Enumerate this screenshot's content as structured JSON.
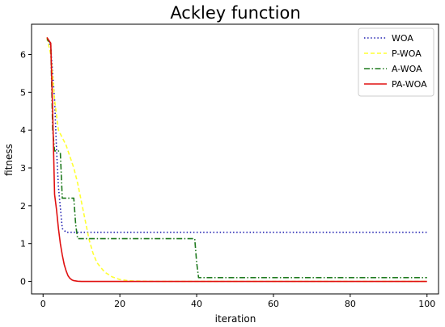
{
  "chart_data": {
    "type": "line",
    "title": "Ackley function",
    "xlabel": "iteration",
    "ylabel": "fitness",
    "xlim": [
      -3,
      103
    ],
    "ylim": [
      -0.33,
      6.8
    ],
    "xticks": [
      0,
      20,
      40,
      60,
      80,
      100
    ],
    "yticks": [
      0,
      1,
      2,
      3,
      4,
      5,
      6
    ],
    "grid": false,
    "legend": "top-right",
    "series": [
      {
        "name": "WOA",
        "color": "#1f1fb0",
        "dash": "dotted",
        "x": [
          1,
          2,
          3,
          3.5,
          4,
          5,
          6,
          8,
          10,
          20,
          40,
          60,
          80,
          100
        ],
        "y": [
          6.45,
          6.2,
          4.8,
          3.5,
          2.5,
          1.4,
          1.3,
          1.3,
          1.3,
          1.3,
          1.3,
          1.3,
          1.3,
          1.3
        ]
      },
      {
        "name": "P-WOA",
        "color": "#ffff33",
        "dash": "dashed",
        "x": [
          1,
          2,
          3,
          4,
          5,
          6,
          7,
          8,
          9,
          10,
          11,
          12,
          13,
          14,
          16,
          18,
          20,
          22,
          24,
          26,
          30,
          40,
          60,
          80,
          100
        ],
        "y": [
          6.45,
          6.0,
          4.8,
          4.0,
          3.8,
          3.6,
          3.3,
          3.0,
          2.6,
          2.1,
          1.6,
          1.1,
          0.75,
          0.5,
          0.25,
          0.12,
          0.05,
          0.02,
          0.01,
          0.005,
          0,
          0,
          0,
          0,
          0
        ]
      },
      {
        "name": "A-WOA",
        "color": "#1f7a1f",
        "dash": "dashdot",
        "x": [
          1,
          2,
          2.5,
          3,
          4,
          4.5,
          5,
          6,
          7,
          8,
          8.5,
          9,
          15,
          20,
          30,
          39.5,
          40,
          40.5,
          60,
          80,
          100
        ],
        "y": [
          6.4,
          6.3,
          4.0,
          3.45,
          3.45,
          3.4,
          2.2,
          2.2,
          2.2,
          2.2,
          1.5,
          1.13,
          1.13,
          1.13,
          1.13,
          1.13,
          0.5,
          0.1,
          0.1,
          0.1,
          0.1
        ]
      },
      {
        "name": "PA-WOA",
        "color": "#e01010",
        "dash": "solid",
        "x": [
          1,
          2,
          2.5,
          3,
          3.5,
          4,
          4.5,
          5,
          5.5,
          6,
          6.5,
          7,
          7.5,
          8,
          9,
          10,
          15,
          20,
          40,
          60,
          80,
          100
        ],
        "y": [
          6.45,
          6.3,
          4.5,
          2.3,
          1.9,
          1.4,
          1.0,
          0.7,
          0.45,
          0.28,
          0.15,
          0.08,
          0.04,
          0.02,
          0.005,
          0,
          0,
          0,
          0,
          0,
          0,
          0
        ]
      }
    ]
  }
}
